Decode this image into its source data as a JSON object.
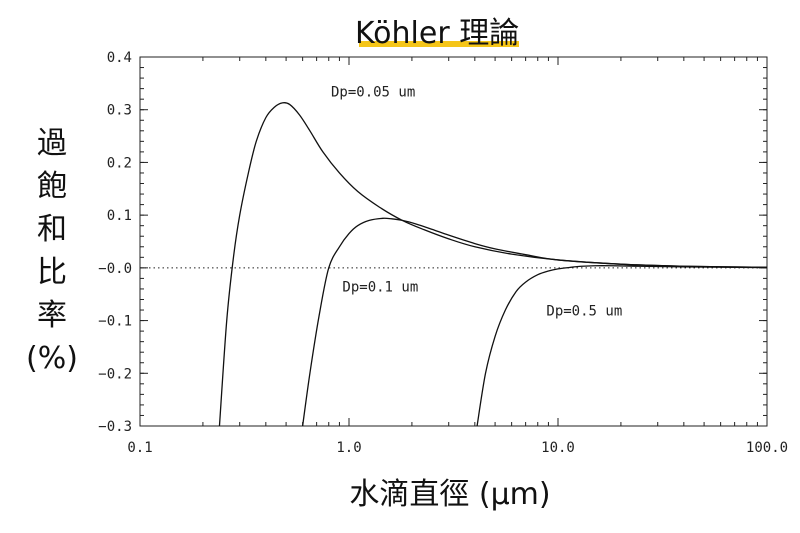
{
  "chart_data": {
    "type": "line",
    "title": "Köhler 理論",
    "xlabel": "水滴直徑 (μm)",
    "ylabel": "過飽和比率(%)",
    "ylabel_lines": [
      "過",
      "飽",
      "和",
      "比",
      "率",
      "(%)"
    ],
    "x_scale": "log",
    "xlim": [
      0.1,
      100.0
    ],
    "ylim": [
      -0.3,
      0.4
    ],
    "x_ticks": [
      0.1,
      1.0,
      10.0,
      100.0
    ],
    "x_tick_labels": [
      "0.1",
      "1.0",
      "10.0",
      "100.0"
    ],
    "y_ticks": [
      0.4,
      0.3,
      0.2,
      0.1,
      0.0,
      -0.1,
      -0.2,
      -0.3
    ],
    "y_tick_labels": [
      "0.4",
      "0.3",
      "0.2",
      "0.1",
      "−0.0",
      "−0.1",
      "−0.2",
      "−0.3"
    ],
    "reference_line": {
      "y": 0.0,
      "style": "dotted"
    },
    "grid": false,
    "series": [
      {
        "label": "Dp=0.05 um",
        "x": [
          0.24,
          0.26,
          0.28,
          0.3,
          0.33,
          0.36,
          0.4,
          0.44,
          0.48,
          0.52,
          0.58,
          0.65,
          0.75,
          0.9,
          1.1,
          1.4,
          1.8,
          2.3,
          3.0,
          4.0,
          6.0,
          10.0,
          20.0,
          40.0,
          100.0
        ],
        "y": [
          -0.3,
          -0.1,
          0.02,
          0.1,
          0.18,
          0.24,
          0.285,
          0.305,
          0.313,
          0.31,
          0.29,
          0.26,
          0.22,
          0.18,
          0.145,
          0.115,
          0.09,
          0.072,
          0.055,
          0.04,
          0.026,
          0.015,
          0.007,
          0.003,
          0.001
        ]
      },
      {
        "label": "Dp=0.1 um",
        "x": [
          0.6,
          0.65,
          0.72,
          0.8,
          0.9,
          1.0,
          1.1,
          1.25,
          1.45,
          1.6,
          1.8,
          2.1,
          2.5,
          3.0,
          4.0,
          5.0,
          7.0,
          10.0,
          20.0,
          40.0,
          100.0
        ],
        "y": [
          -0.3,
          -0.2,
          -0.09,
          0.0,
          0.04,
          0.065,
          0.08,
          0.09,
          0.094,
          0.093,
          0.09,
          0.083,
          0.073,
          0.062,
          0.046,
          0.036,
          0.025,
          0.015,
          0.007,
          0.003,
          0.001
        ]
      },
      {
        "label": "Dp=0.5 um",
        "x": [
          4.1,
          4.5,
          5.0,
          5.6,
          6.3,
          7.0,
          8.0,
          9.0,
          10.0,
          11.5,
          13.0,
          15.0,
          18.0,
          25.0,
          40.0,
          100.0
        ],
        "y": [
          -0.3,
          -0.2,
          -0.13,
          -0.08,
          -0.045,
          -0.027,
          -0.013,
          -0.006,
          -0.002,
          0.001,
          0.003,
          0.004,
          0.004,
          0.003,
          0.002,
          0.0005
        ]
      }
    ],
    "annotations": [
      {
        "text": "Dp=0.05 um",
        "x": 0.82,
        "y": 0.325
      },
      {
        "text": "Dp=0.1 um",
        "x": 0.93,
        "y": -0.045
      },
      {
        "text": "Dp=0.5 um",
        "x": 8.8,
        "y": -0.09
      }
    ]
  }
}
